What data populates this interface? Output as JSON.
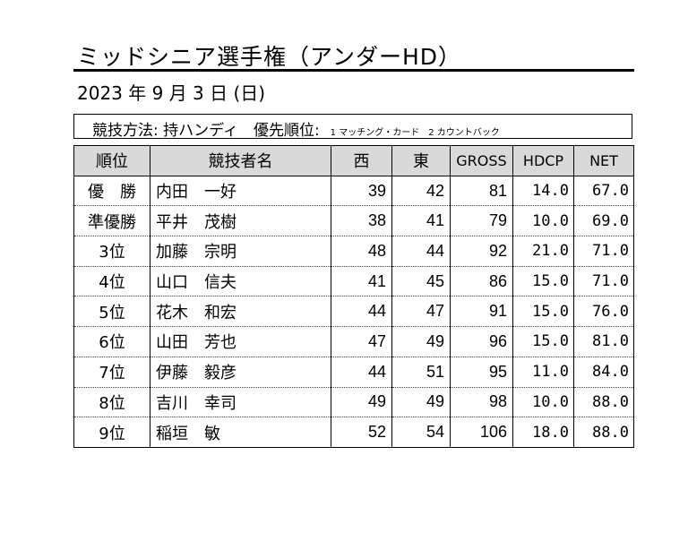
{
  "title": "ミッドシニア選手権（アンダーHD）",
  "date": "2023 年 9 月 3 日 (日)",
  "method": {
    "label": "競技方法: 持ハンディ　優先順位:",
    "priority": "1 マッチング・カード　2 カウントバック"
  },
  "table": {
    "headers": [
      "順位",
      "競技者名",
      "西",
      "東",
      "GROSS",
      "HDCP",
      "NET"
    ],
    "rows": [
      {
        "rank": "優　勝",
        "name": "内田　一好",
        "west": "39",
        "east": "42",
        "gross": "81",
        "hdcp": "14.0",
        "net": "67.0"
      },
      {
        "rank": "準優勝",
        "name": "平井　茂樹",
        "west": "38",
        "east": "41",
        "gross": "79",
        "hdcp": "10.0",
        "net": "69.0"
      },
      {
        "rank": "3位",
        "name": "加藤　宗明",
        "west": "48",
        "east": "44",
        "gross": "92",
        "hdcp": "21.0",
        "net": "71.0"
      },
      {
        "rank": "4位",
        "name": "山口　信夫",
        "west": "41",
        "east": "45",
        "gross": "86",
        "hdcp": "15.0",
        "net": "71.0"
      },
      {
        "rank": "5位",
        "name": "花木　和宏",
        "west": "44",
        "east": "47",
        "gross": "91",
        "hdcp": "15.0",
        "net": "76.0"
      },
      {
        "rank": "6位",
        "name": "山田　芳也",
        "west": "47",
        "east": "49",
        "gross": "96",
        "hdcp": "15.0",
        "net": "81.0"
      },
      {
        "rank": "7位",
        "name": "伊藤　毅彦",
        "west": "44",
        "east": "51",
        "gross": "95",
        "hdcp": "11.0",
        "net": "84.0"
      },
      {
        "rank": "8位",
        "name": "吉川　幸司",
        "west": "49",
        "east": "49",
        "gross": "98",
        "hdcp": "10.0",
        "net": "88.0"
      },
      {
        "rank": "9位",
        "name": "稲垣　敏",
        "west": "52",
        "east": "54",
        "gross": "106",
        "hdcp": "18.0",
        "net": "88.0"
      }
    ]
  }
}
